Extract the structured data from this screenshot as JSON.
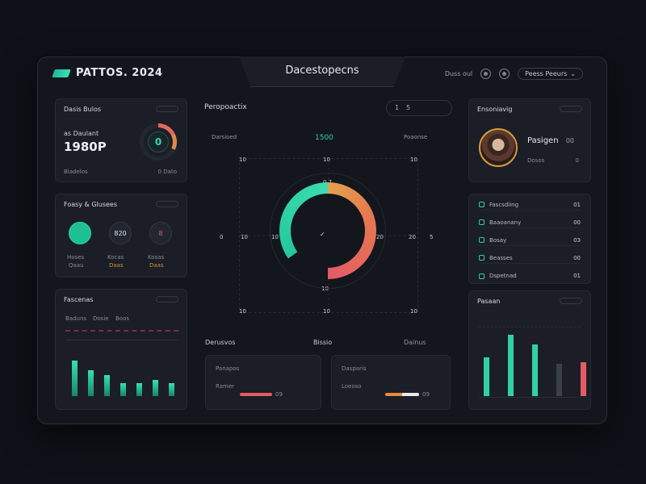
{
  "header": {
    "brand": "PATTOS. 2024",
    "center_title": "Dacestopecns",
    "right_text": "Duss oul",
    "search_pill": "Peess Peeurs",
    "search_chevron": "⌄"
  },
  "left": {
    "card1": {
      "title": "Dasis Bulos",
      "subtitle": "as Daulant",
      "value": "1980P",
      "footer_left": "Bladelos",
      "footer_right": "0 Dato",
      "ring_value": "0"
    },
    "card2": {
      "title": "Foasy & Glusees",
      "widget_values": [
        "",
        "820",
        "8"
      ],
      "labels": [
        "Hoses",
        "Kocas",
        "Kosas"
      ],
      "sublabels": [
        "Qaau",
        "Daas",
        "Daas"
      ]
    },
    "card3": {
      "title": "Fascenas",
      "legend": [
        "Baduns",
        "Dosie",
        "Boos"
      ],
      "bars": [
        44,
        32,
        26,
        16,
        16,
        20,
        16
      ]
    }
  },
  "center": {
    "title": "Peropoactix",
    "ctrl_left": "1",
    "ctrl_right": "5",
    "left_label": "Darsioed",
    "top_value": "1500",
    "right_label": "Poaonse",
    "axis_top": [
      "10",
      "10",
      "10"
    ],
    "axis_left": [
      "0",
      "10",
      "10"
    ],
    "axis_right": [
      "20",
      "20",
      "5"
    ],
    "axis_bottom": [
      "10",
      "10",
      "10"
    ],
    "gauge_top": "0.7",
    "gauge_bottom": "10",
    "gauge_center": "✓",
    "gauge_fraction": 0.78,
    "bottom_title": "Derusvos",
    "bottom_mid": "Bissio",
    "bottom_right": "Dainus",
    "card_a": {
      "title": "Panapos",
      "label": "Ramer",
      "value": "09"
    },
    "card_b": {
      "title": "Dasparis",
      "label": "Loeoso",
      "value": "09"
    }
  },
  "right": {
    "profile": {
      "title": "Ensoniavig",
      "name": "Pasigen",
      "name_val": "00",
      "sub": "Dosos",
      "sub_val": "0"
    },
    "list": [
      {
        "label": "Fascsdiing",
        "val": "01"
      },
      {
        "label": "Baaoanany",
        "val": "00"
      },
      {
        "label": "Bosay",
        "val": "03"
      },
      {
        "label": "Beasses",
        "val": "00"
      },
      {
        "label": "Dspetnad",
        "val": "01"
      }
    ],
    "chart": {
      "title": "Pasaan",
      "bars": [
        {
          "value": 48,
          "color": "#2fd2a5"
        },
        {
          "value": 76,
          "color": "#2fd2a5"
        },
        {
          "value": 64,
          "color": "#2fd2a5"
        },
        {
          "value": 40,
          "color": "#3a3f48"
        },
        {
          "value": 42,
          "color": "#e35b66"
        }
      ]
    }
  }
}
